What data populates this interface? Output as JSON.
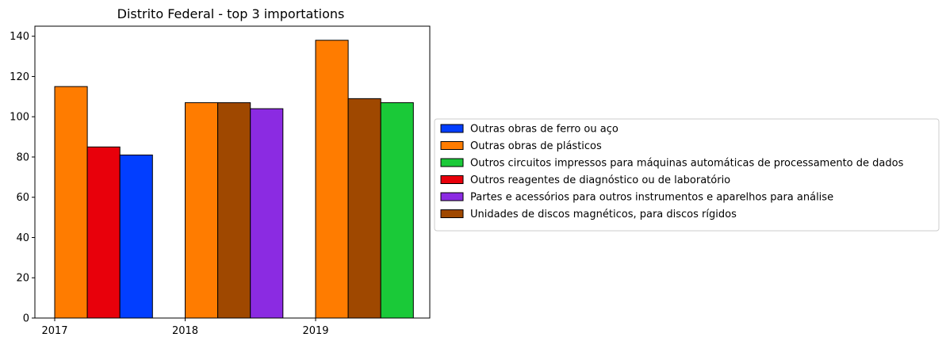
{
  "chart_data": {
    "type": "bar",
    "title": "Distrito Federal - top 3 importations",
    "xlabel": "",
    "ylabel": "",
    "ylim": [
      0,
      145
    ],
    "yticks": [
      0,
      20,
      40,
      60,
      80,
      100,
      120,
      140
    ],
    "categories": [
      "2017",
      "2018",
      "2019"
    ],
    "legend_position": "right",
    "grid": false,
    "series": [
      {
        "name": "Outras obras de ferro ou aço",
        "color": "#023eff",
        "values": [
          81,
          null,
          null
        ]
      },
      {
        "name": "Outras obras de plásticos",
        "color": "#ff7c00",
        "values": [
          115,
          107,
          138
        ]
      },
      {
        "name": "Outros circuitos impressos para máquinas automáticas de processamento de dados",
        "color": "#1ac938",
        "values": [
          null,
          null,
          107
        ]
      },
      {
        "name": "Outros reagentes de diagnóstico ou de laboratório",
        "color": "#e8000b",
        "values": [
          85,
          null,
          null
        ]
      },
      {
        "name": "Partes e acessórios para outros instrumentos e aparelhos para análise",
        "color": "#8b2be2",
        "values": [
          null,
          104,
          null
        ]
      },
      {
        "name": "Unidades de discos magnéticos, para discos rígidos",
        "color": "#9f4800",
        "values": [
          null,
          107,
          109
        ]
      }
    ],
    "bar_order": [
      [
        1,
        3,
        0
      ],
      [
        1,
        5,
        4
      ],
      [
        1,
        5,
        2
      ]
    ]
  }
}
